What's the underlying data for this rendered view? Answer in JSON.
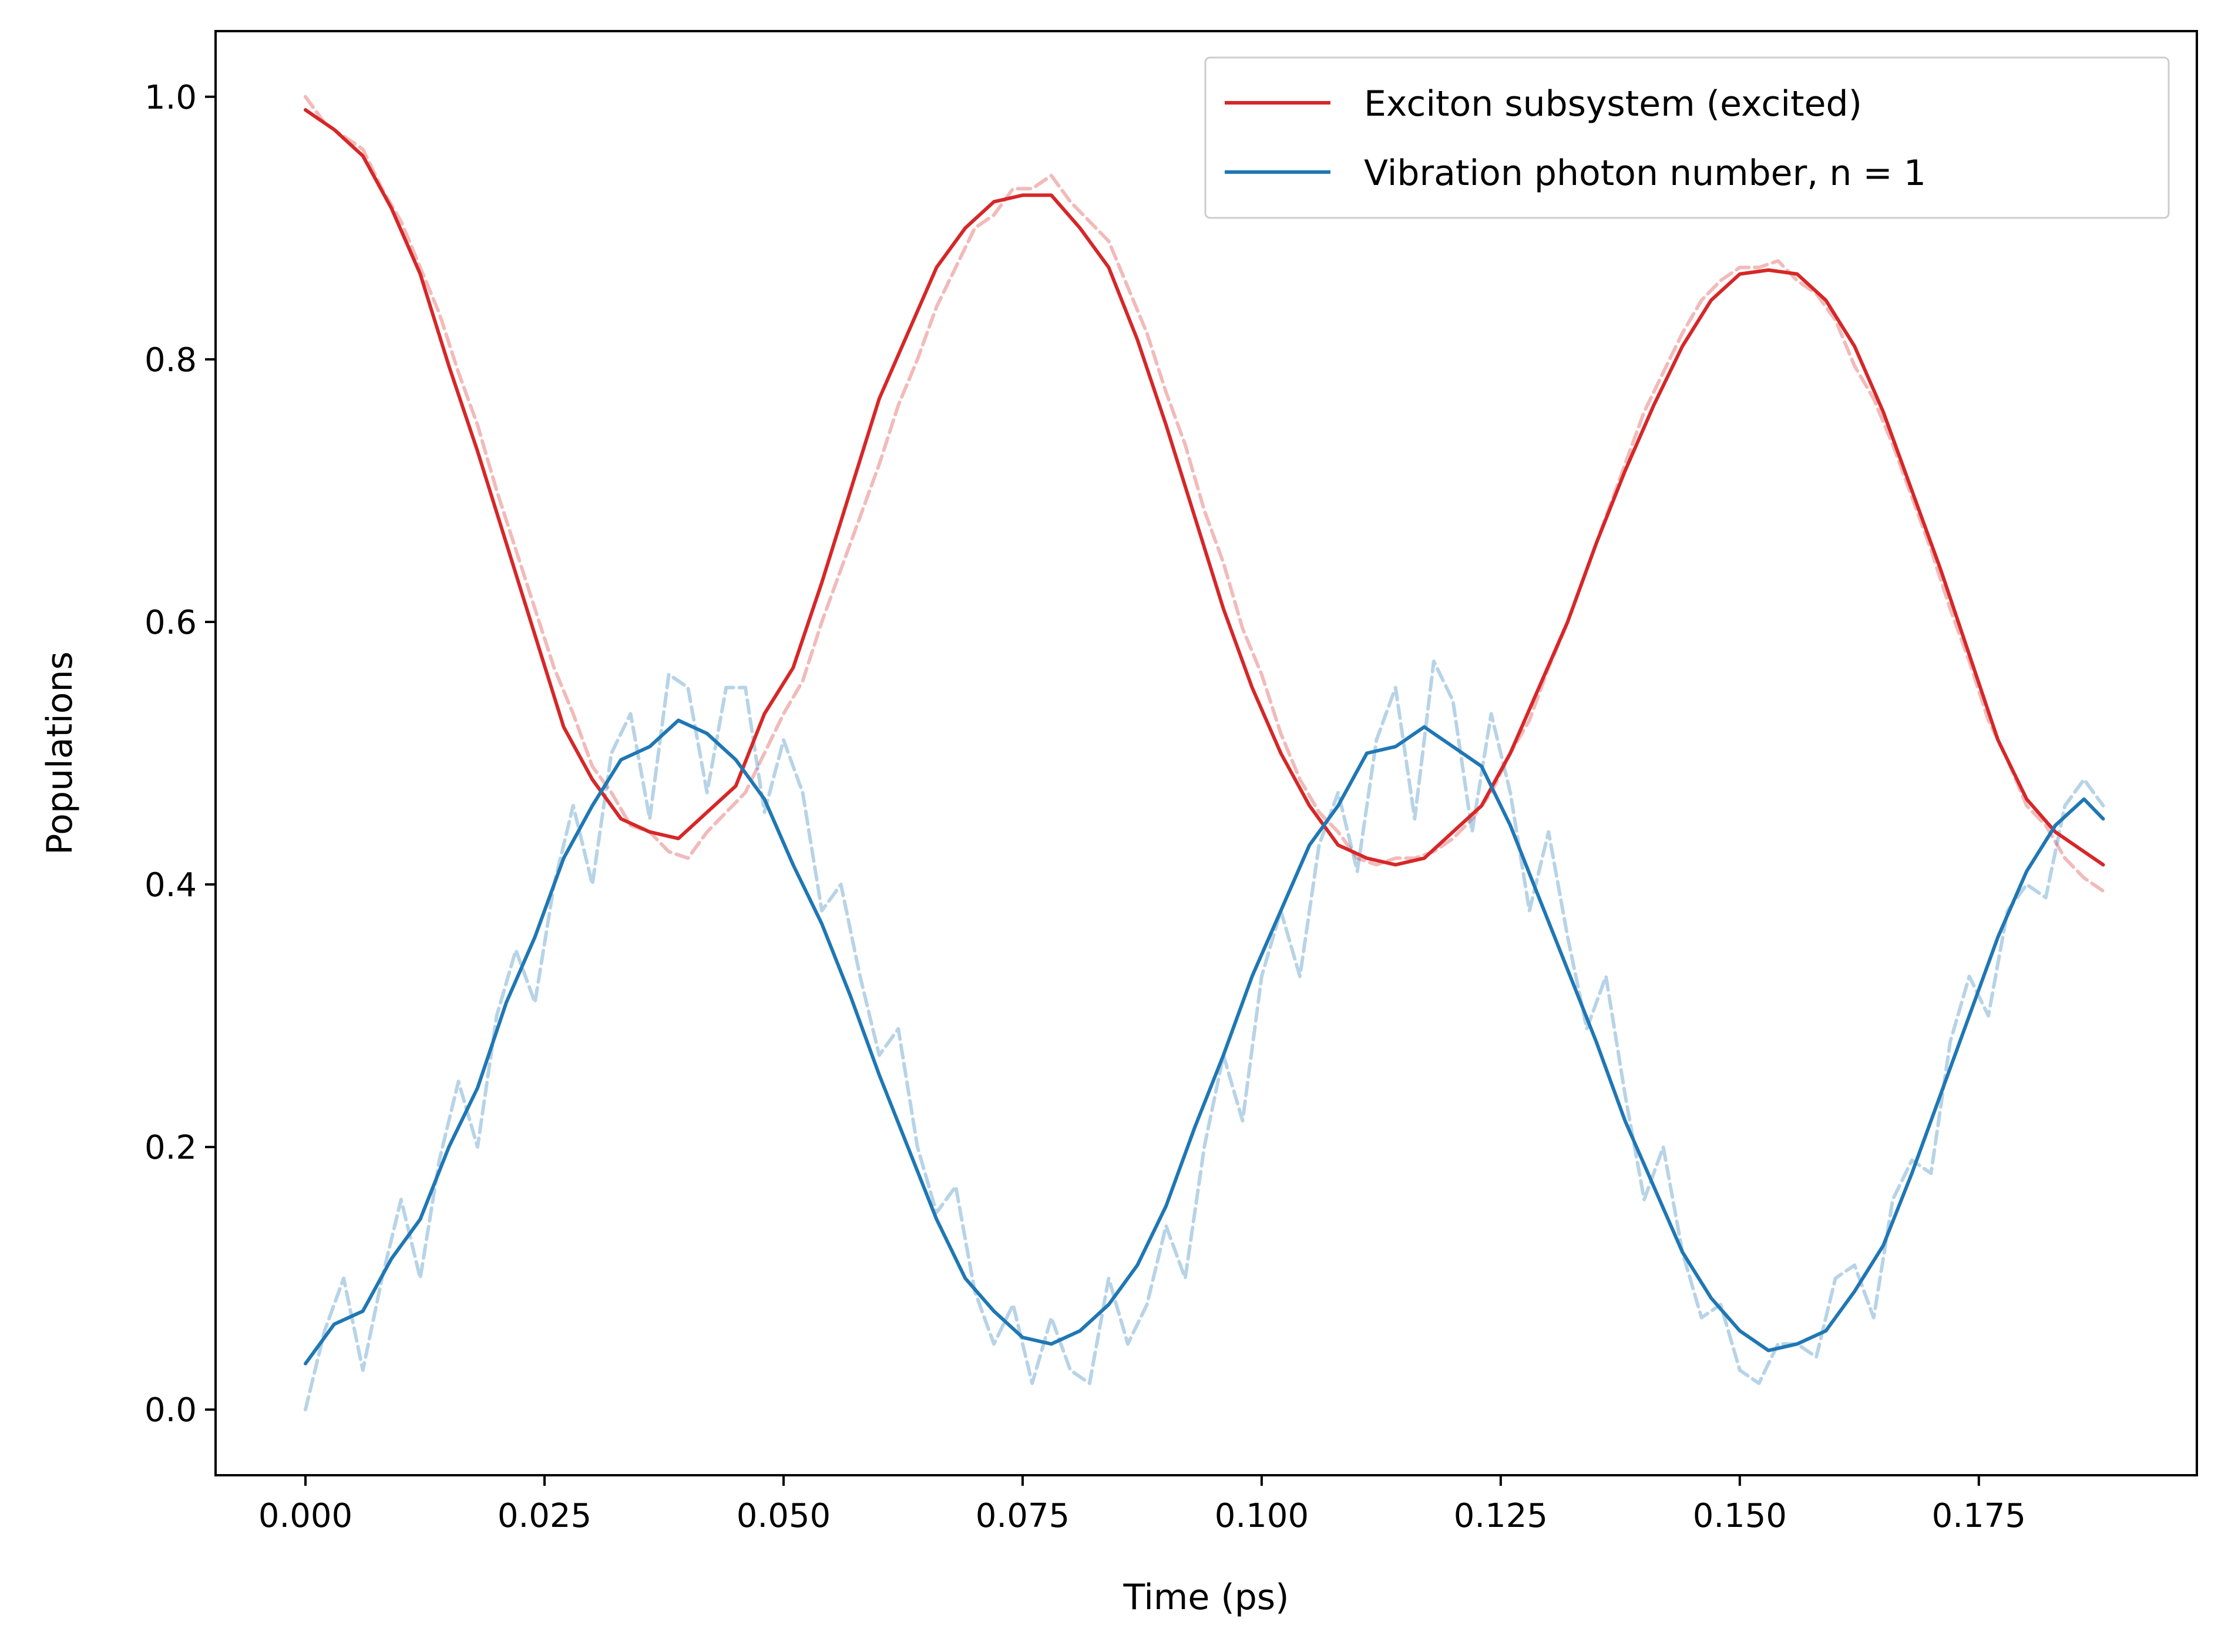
{
  "chart_data": {
    "type": "line",
    "title": "",
    "xlabel": "Time (ps)",
    "ylabel": "Populations",
    "xlim": [
      -0.0094,
      0.1978
    ],
    "ylim": [
      -0.05,
      1.05
    ],
    "xticks": [
      0.0,
      0.025,
      0.05,
      0.075,
      0.1,
      0.125,
      0.15,
      0.175
    ],
    "xtick_labels": [
      "0.000",
      "0.025",
      "0.050",
      "0.075",
      "0.100",
      "0.125",
      "0.150",
      "0.175"
    ],
    "yticks": [
      0.0,
      0.2,
      0.4,
      0.6,
      0.8,
      1.0
    ],
    "ytick_labels": [
      "0.0",
      "0.2",
      "0.4",
      "0.6",
      "0.8",
      "1.0"
    ],
    "grid": false,
    "legend_position": "top-right",
    "series": [
      {
        "name": "Exciton subsystem (excited)",
        "color": "#d62728",
        "style": "solid",
        "x": [
          0.0,
          0.003,
          0.006,
          0.009,
          0.012,
          0.015,
          0.018,
          0.021,
          0.024,
          0.027,
          0.03,
          0.033,
          0.036,
          0.039,
          0.042,
          0.045,
          0.048,
          0.051,
          0.054,
          0.057,
          0.06,
          0.063,
          0.066,
          0.069,
          0.072,
          0.075,
          0.078,
          0.081,
          0.084,
          0.087,
          0.09,
          0.093,
          0.096,
          0.099,
          0.102,
          0.105,
          0.108,
          0.111,
          0.114,
          0.117,
          0.12,
          0.123,
          0.126,
          0.129,
          0.132,
          0.135,
          0.138,
          0.141,
          0.144,
          0.147,
          0.15,
          0.153,
          0.156,
          0.159,
          0.162,
          0.165,
          0.168,
          0.171,
          0.174,
          0.177,
          0.18,
          0.183,
          0.186,
          0.188
        ],
        "y": [
          0.99,
          0.975,
          0.955,
          0.915,
          0.865,
          0.795,
          0.73,
          0.66,
          0.59,
          0.52,
          0.48,
          0.45,
          0.44,
          0.435,
          0.455,
          0.475,
          0.53,
          0.565,
          0.63,
          0.7,
          0.77,
          0.82,
          0.87,
          0.9,
          0.92,
          0.925,
          0.925,
          0.9,
          0.87,
          0.815,
          0.75,
          0.68,
          0.61,
          0.55,
          0.5,
          0.46,
          0.43,
          0.42,
          0.415,
          0.42,
          0.44,
          0.46,
          0.5,
          0.55,
          0.6,
          0.66,
          0.715,
          0.765,
          0.81,
          0.845,
          0.865,
          0.868,
          0.865,
          0.845,
          0.81,
          0.76,
          0.7,
          0.64,
          0.575,
          0.51,
          0.465,
          0.44,
          0.425,
          0.415
        ]
      },
      {
        "name": "Vibration photon number, n = 1",
        "color": "#1f77b4",
        "style": "solid",
        "x": [
          0.0,
          0.003,
          0.006,
          0.009,
          0.012,
          0.015,
          0.018,
          0.021,
          0.024,
          0.027,
          0.03,
          0.033,
          0.036,
          0.039,
          0.042,
          0.045,
          0.048,
          0.051,
          0.054,
          0.057,
          0.06,
          0.063,
          0.066,
          0.069,
          0.072,
          0.075,
          0.078,
          0.081,
          0.084,
          0.087,
          0.09,
          0.093,
          0.096,
          0.099,
          0.102,
          0.105,
          0.108,
          0.111,
          0.114,
          0.117,
          0.12,
          0.123,
          0.126,
          0.129,
          0.132,
          0.135,
          0.138,
          0.141,
          0.144,
          0.147,
          0.15,
          0.153,
          0.156,
          0.159,
          0.162,
          0.165,
          0.168,
          0.171,
          0.174,
          0.177,
          0.18,
          0.183,
          0.186,
          0.188
        ],
        "y": [
          0.035,
          0.065,
          0.075,
          0.115,
          0.145,
          0.2,
          0.245,
          0.31,
          0.36,
          0.42,
          0.46,
          0.495,
          0.505,
          0.525,
          0.515,
          0.495,
          0.465,
          0.415,
          0.37,
          0.315,
          0.255,
          0.2,
          0.145,
          0.1,
          0.075,
          0.055,
          0.05,
          0.06,
          0.08,
          0.11,
          0.155,
          0.215,
          0.27,
          0.33,
          0.38,
          0.43,
          0.46,
          0.5,
          0.505,
          0.52,
          0.505,
          0.49,
          0.445,
          0.39,
          0.335,
          0.28,
          0.22,
          0.17,
          0.12,
          0.085,
          0.06,
          0.045,
          0.05,
          0.06,
          0.09,
          0.125,
          0.18,
          0.24,
          0.3,
          0.36,
          0.41,
          0.445,
          0.465,
          0.45
        ]
      },
      {
        "name": "",
        "color": "#d62728",
        "style": "dashed",
        "x": [
          0.0,
          0.002,
          0.004,
          0.006,
          0.008,
          0.01,
          0.012,
          0.014,
          0.016,
          0.018,
          0.02,
          0.022,
          0.024,
          0.026,
          0.028,
          0.03,
          0.032,
          0.034,
          0.036,
          0.038,
          0.04,
          0.042,
          0.044,
          0.046,
          0.048,
          0.05,
          0.052,
          0.054,
          0.056,
          0.058,
          0.06,
          0.062,
          0.064,
          0.066,
          0.068,
          0.07,
          0.072,
          0.074,
          0.076,
          0.078,
          0.08,
          0.082,
          0.084,
          0.086,
          0.088,
          0.09,
          0.092,
          0.094,
          0.096,
          0.098,
          0.1,
          0.102,
          0.104,
          0.106,
          0.108,
          0.11,
          0.112,
          0.114,
          0.116,
          0.118,
          0.12,
          0.122,
          0.124,
          0.126,
          0.128,
          0.13,
          0.132,
          0.134,
          0.136,
          0.138,
          0.14,
          0.142,
          0.144,
          0.146,
          0.148,
          0.15,
          0.152,
          0.154,
          0.156,
          0.158,
          0.16,
          0.162,
          0.164,
          0.166,
          0.168,
          0.17,
          0.172,
          0.174,
          0.176,
          0.178,
          0.18,
          0.182,
          0.184,
          0.186,
          0.188
        ],
        "y": [
          1.0,
          0.98,
          0.97,
          0.96,
          0.93,
          0.905,
          0.87,
          0.835,
          0.79,
          0.75,
          0.7,
          0.655,
          0.61,
          0.565,
          0.53,
          0.49,
          0.47,
          0.445,
          0.44,
          0.425,
          0.42,
          0.44,
          0.455,
          0.47,
          0.5,
          0.53,
          0.555,
          0.6,
          0.64,
          0.68,
          0.72,
          0.765,
          0.8,
          0.84,
          0.87,
          0.9,
          0.91,
          0.93,
          0.93,
          0.94,
          0.92,
          0.905,
          0.89,
          0.855,
          0.82,
          0.775,
          0.735,
          0.685,
          0.645,
          0.595,
          0.56,
          0.515,
          0.48,
          0.455,
          0.44,
          0.42,
          0.415,
          0.42,
          0.42,
          0.425,
          0.435,
          0.45,
          0.47,
          0.5,
          0.525,
          0.565,
          0.6,
          0.64,
          0.68,
          0.72,
          0.76,
          0.79,
          0.82,
          0.845,
          0.86,
          0.87,
          0.87,
          0.875,
          0.86,
          0.85,
          0.83,
          0.795,
          0.77,
          0.735,
          0.695,
          0.655,
          0.61,
          0.57,
          0.525,
          0.495,
          0.46,
          0.445,
          0.42,
          0.405,
          0.395
        ]
      },
      {
        "name": "",
        "color": "#1f77b4",
        "style": "dashed",
        "x": [
          0.0,
          0.002,
          0.004,
          0.006,
          0.008,
          0.01,
          0.012,
          0.014,
          0.016,
          0.018,
          0.02,
          0.022,
          0.024,
          0.026,
          0.028,
          0.03,
          0.032,
          0.034,
          0.036,
          0.038,
          0.04,
          0.042,
          0.044,
          0.046,
          0.048,
          0.05,
          0.052,
          0.054,
          0.056,
          0.058,
          0.06,
          0.062,
          0.064,
          0.066,
          0.068,
          0.07,
          0.072,
          0.074,
          0.076,
          0.078,
          0.08,
          0.082,
          0.084,
          0.086,
          0.088,
          0.09,
          0.092,
          0.094,
          0.096,
          0.098,
          0.1,
          0.102,
          0.104,
          0.106,
          0.108,
          0.11,
          0.112,
          0.114,
          0.116,
          0.118,
          0.12,
          0.122,
          0.124,
          0.126,
          0.128,
          0.13,
          0.132,
          0.134,
          0.136,
          0.138,
          0.14,
          0.142,
          0.144,
          0.146,
          0.148,
          0.15,
          0.152,
          0.154,
          0.156,
          0.158,
          0.16,
          0.162,
          0.164,
          0.166,
          0.168,
          0.17,
          0.172,
          0.174,
          0.176,
          0.178,
          0.18,
          0.182,
          0.184,
          0.186,
          0.188
        ],
        "y": [
          0.0,
          0.06,
          0.1,
          0.03,
          0.1,
          0.16,
          0.1,
          0.19,
          0.25,
          0.2,
          0.3,
          0.35,
          0.31,
          0.4,
          0.46,
          0.4,
          0.5,
          0.53,
          0.45,
          0.56,
          0.55,
          0.47,
          0.55,
          0.55,
          0.455,
          0.51,
          0.47,
          0.38,
          0.4,
          0.33,
          0.27,
          0.29,
          0.2,
          0.15,
          0.17,
          0.09,
          0.05,
          0.08,
          0.02,
          0.07,
          0.03,
          0.02,
          0.1,
          0.05,
          0.08,
          0.14,
          0.1,
          0.2,
          0.27,
          0.22,
          0.33,
          0.38,
          0.33,
          0.43,
          0.47,
          0.41,
          0.51,
          0.55,
          0.45,
          0.57,
          0.54,
          0.44,
          0.53,
          0.47,
          0.38,
          0.44,
          0.36,
          0.29,
          0.33,
          0.24,
          0.16,
          0.2,
          0.12,
          0.07,
          0.08,
          0.03,
          0.02,
          0.05,
          0.05,
          0.04,
          0.1,
          0.11,
          0.07,
          0.16,
          0.19,
          0.18,
          0.28,
          0.33,
          0.3,
          0.38,
          0.4,
          0.39,
          0.46,
          0.48,
          0.46
        ]
      }
    ]
  }
}
